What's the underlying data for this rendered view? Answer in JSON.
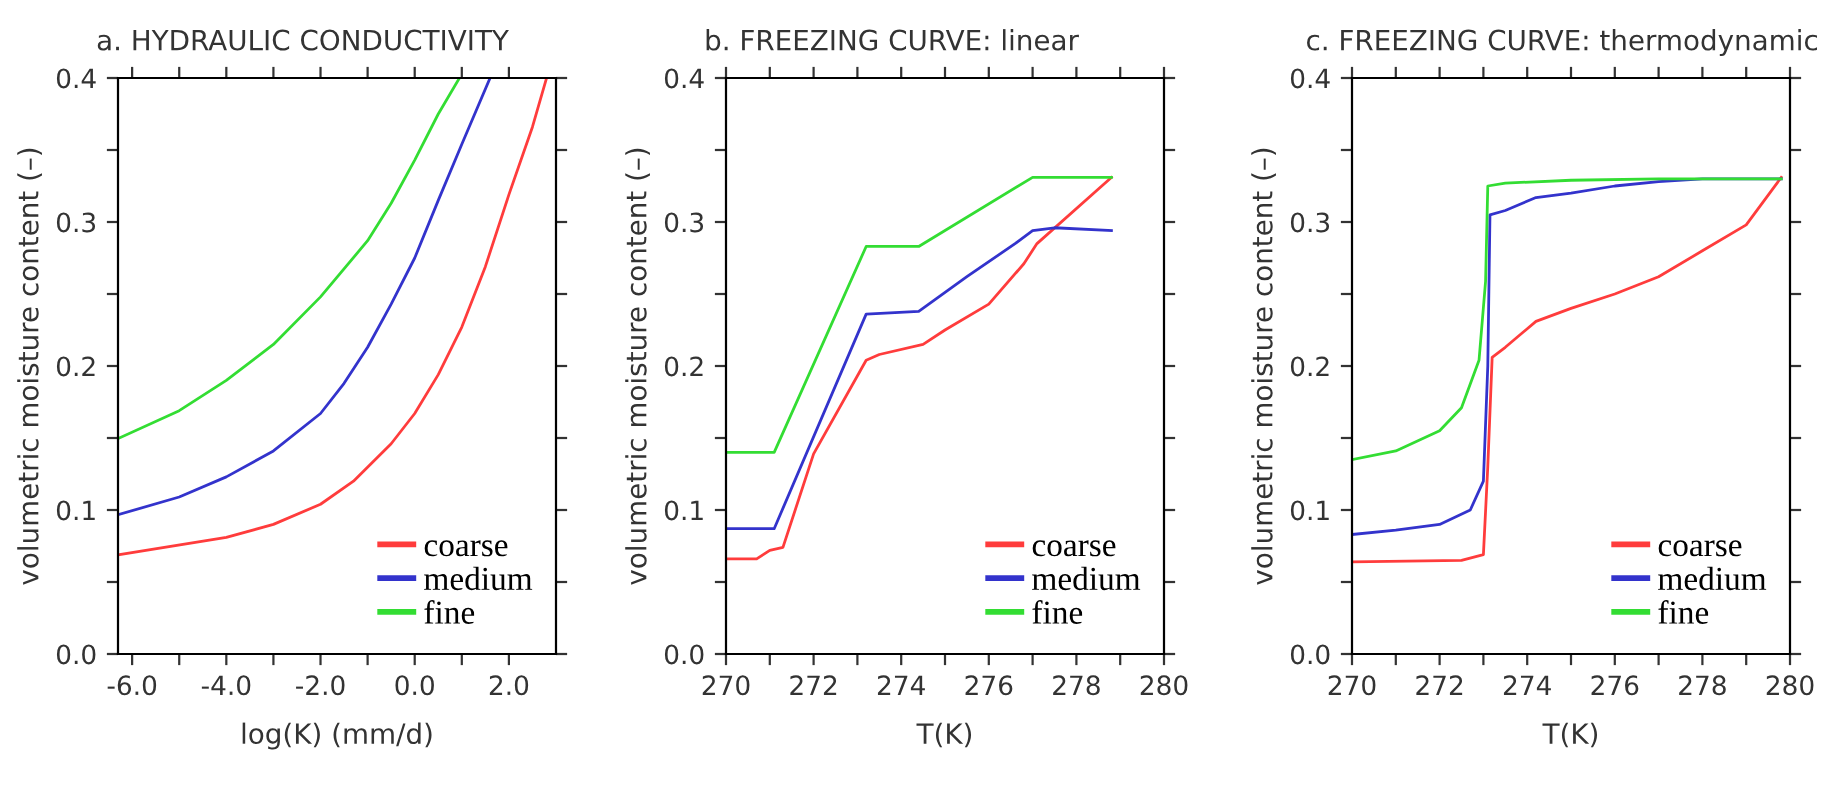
{
  "chart_data": [
    {
      "type": "line",
      "title": "a. HYDRAULIC CONDUCTIVITY",
      "xlabel": "log(K) (mm/d)",
      "ylabel": "volumetric moisture content (–)",
      "xlim": [
        -6.3,
        3.0
      ],
      "ylim": [
        0,
        0.4
      ],
      "xticks": [
        {
          "value": -6,
          "label": "-6.0"
        },
        {
          "value": -5,
          "label": null
        },
        {
          "value": -4,
          "label": "-4.0"
        },
        {
          "value": -3,
          "label": null
        },
        {
          "value": -2,
          "label": "-2.0"
        },
        {
          "value": -1,
          "label": null
        },
        {
          "value": 0,
          "label": "0.0"
        },
        {
          "value": 1,
          "label": null
        },
        {
          "value": 2,
          "label": "2.0"
        }
      ],
      "yticks": [
        {
          "value": 0,
          "label": "0.0"
        },
        {
          "value": 0.05,
          "label": null
        },
        {
          "value": 0.1,
          "label": "0.1"
        },
        {
          "value": 0.15,
          "label": null
        },
        {
          "value": 0.2,
          "label": "0.2"
        },
        {
          "value": 0.25,
          "label": null
        },
        {
          "value": 0.3,
          "label": "0.3"
        },
        {
          "value": 0.35,
          "label": null
        },
        {
          "value": 0.4,
          "label": "0.4"
        }
      ],
      "legend": "bottom right",
      "grid": false,
      "series": [
        {
          "name": "coarse",
          "color": "#ff3c3c",
          "x": [
            -6.27,
            -4,
            -3,
            -2,
            -1.3,
            -0.5,
            0,
            0.5,
            1,
            1.5,
            2,
            2.5,
            2.8
          ],
          "values": [
            0.069,
            0.081,
            0.09,
            0.104,
            0.12,
            0.146,
            0.167,
            0.194,
            0.227,
            0.269,
            0.319,
            0.366,
            0.4
          ]
        },
        {
          "name": "medium",
          "color": "#3333cc",
          "x": [
            -6.27,
            -5,
            -4,
            -3,
            -2,
            -1.5,
            -1,
            -0.5,
            0,
            0.5,
            1,
            1.6
          ],
          "values": [
            0.097,
            0.109,
            0.123,
            0.141,
            0.167,
            0.188,
            0.213,
            0.243,
            0.275,
            0.315,
            0.354,
            0.4
          ]
        },
        {
          "name": "fine",
          "color": "#33dd33",
          "x": [
            -6.27,
            -5,
            -4,
            -3,
            -2,
            -1,
            -0.5,
            0,
            0.5,
            0.95
          ],
          "values": [
            0.15,
            0.169,
            0.19,
            0.215,
            0.248,
            0.287,
            0.313,
            0.343,
            0.375,
            0.4
          ]
        }
      ]
    },
    {
      "type": "line",
      "title": "b. FREEZING CURVE: linear",
      "xlabel": "T(K)",
      "ylabel": "volumetric moisture content (–)",
      "xlim": [
        270,
        280
      ],
      "ylim": [
        0,
        0.4
      ],
      "xticks": [
        270,
        {
          "value": 271,
          "label": null
        },
        272,
        {
          "value": 273,
          "label": null
        },
        274,
        {
          "value": 275,
          "label": null
        },
        276,
        {
          "value": 277,
          "label": null
        },
        278,
        {
          "value": 279,
          "label": null
        },
        280
      ],
      "yticks": [
        {
          "value": 0,
          "label": "0.0"
        },
        {
          "value": 0.05,
          "label": null
        },
        {
          "value": 0.1,
          "label": "0.1"
        },
        {
          "value": 0.15,
          "label": null
        },
        {
          "value": 0.2,
          "label": "0.2"
        },
        {
          "value": 0.25,
          "label": null
        },
        {
          "value": 0.3,
          "label": "0.3"
        },
        {
          "value": 0.35,
          "label": null
        },
        {
          "value": 0.4,
          "label": "0.4"
        }
      ],
      "legend": "bottom right",
      "grid": false,
      "series": [
        {
          "name": "coarse",
          "color": "#ff3c3c",
          "x": [
            270,
            270.7,
            271,
            271.3,
            272,
            273.2,
            273.5,
            274.5,
            275,
            276,
            276.8,
            277.1,
            278.8
          ],
          "values": [
            0.066,
            0.066,
            0.072,
            0.074,
            0.139,
            0.204,
            0.208,
            0.215,
            0.225,
            0.243,
            0.271,
            0.285,
            0.331
          ]
        },
        {
          "name": "medium",
          "color": "#3333cc",
          "x": [
            270,
            271.1,
            273.2,
            274.4,
            275.5,
            276.6,
            277,
            277.5,
            278.8
          ],
          "values": [
            0.087,
            0.087,
            0.236,
            0.238,
            0.262,
            0.285,
            0.294,
            0.296,
            0.294
          ]
        },
        {
          "name": "fine",
          "color": "#33dd33",
          "x": [
            270,
            271.1,
            273.2,
            274.4,
            277,
            278.8
          ],
          "values": [
            0.14,
            0.14,
            0.283,
            0.283,
            0.331,
            0.331
          ]
        }
      ]
    },
    {
      "type": "line",
      "title": "c. FREEZING CURVE: thermodynamic",
      "xlabel": "T(K)",
      "ylabel": "volumetric moisture content (–)",
      "xlim": [
        270,
        280
      ],
      "ylim": [
        0,
        0.4
      ],
      "xticks": [
        270,
        {
          "value": 271,
          "label": null
        },
        272,
        {
          "value": 273,
          "label": null
        },
        274,
        {
          "value": 275,
          "label": null
        },
        276,
        {
          "value": 277,
          "label": null
        },
        278,
        {
          "value": 279,
          "label": null
        },
        280
      ],
      "yticks": [
        {
          "value": 0,
          "label": "0.0"
        },
        {
          "value": 0.05,
          "label": null
        },
        {
          "value": 0.1,
          "label": "0.1"
        },
        {
          "value": 0.15,
          "label": null
        },
        {
          "value": 0.2,
          "label": "0.2"
        },
        {
          "value": 0.25,
          "label": null
        },
        {
          "value": 0.3,
          "label": "0.3"
        },
        {
          "value": 0.35,
          "label": null
        },
        {
          "value": 0.4,
          "label": "0.4"
        }
      ],
      "legend": "bottom right",
      "grid": false,
      "series": [
        {
          "name": "coarse",
          "color": "#ff3c3c",
          "x": [
            270,
            272.5,
            273,
            273.1,
            273.2,
            273.5,
            274.2,
            275,
            276,
            277,
            278,
            279,
            279.8
          ],
          "values": [
            0.064,
            0.065,
            0.069,
            0.13,
            0.206,
            0.213,
            0.231,
            0.24,
            0.25,
            0.262,
            0.28,
            0.298,
            0.331
          ]
        },
        {
          "name": "medium",
          "color": "#3333cc",
          "x": [
            270,
            271,
            272,
            272.7,
            273,
            273.1,
            273.15,
            273.5,
            274.2,
            275,
            276,
            277,
            278,
            279.8
          ],
          "values": [
            0.083,
            0.086,
            0.09,
            0.1,
            0.12,
            0.2,
            0.305,
            0.308,
            0.317,
            0.32,
            0.325,
            0.328,
            0.33,
            0.33
          ]
        },
        {
          "name": "fine",
          "color": "#33dd33",
          "x": [
            270,
            271,
            272,
            272.5,
            272.9,
            273.05,
            273.1,
            273.5,
            275,
            277,
            279.8
          ],
          "values": [
            0.135,
            0.141,
            0.155,
            0.171,
            0.204,
            0.259,
            0.325,
            0.327,
            0.329,
            0.33,
            0.33
          ]
        }
      ]
    }
  ]
}
